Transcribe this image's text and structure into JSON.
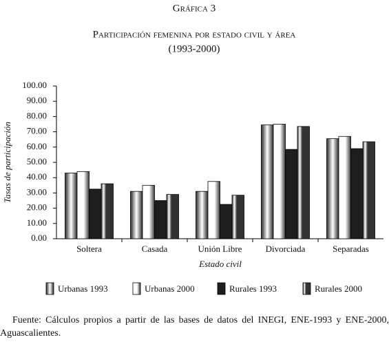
{
  "chart_data": {
    "type": "bar",
    "heading": "Gráfica 3",
    "title": "Participación femenina por estado civil y área",
    "subtitle": "(1993-2000)",
    "ylabel": "Tasas de participación",
    "xlabel": "Estado civil",
    "categories": [
      "Soltera",
      "Casada",
      "Unión Libre",
      "Divorciada",
      "Separadas"
    ],
    "series": [
      {
        "name": "Urbanas 1993",
        "color": "#2a2a2a",
        "values": [
          43,
          31,
          31,
          74.5,
          65.5
        ]
      },
      {
        "name": "Urbanas 2000",
        "color": "#3a3a3a",
        "values": [
          44,
          35,
          37.5,
          75,
          67
        ]
      },
      {
        "name": "Rurales 1993",
        "color": "#1e1e1e",
        "values": [
          32.5,
          25,
          22.5,
          58.5,
          59
        ]
      },
      {
        "name": "Rurales 2000",
        "color": "#333333",
        "values": [
          36,
          29,
          28.5,
          73.5,
          63.5
        ]
      }
    ],
    "ylim": [
      0,
      100
    ],
    "yticks": [
      {
        "value": 0,
        "label": "0.00"
      },
      {
        "value": 10,
        "label": "10.00"
      },
      {
        "value": 20,
        "label": "20.00"
      },
      {
        "value": 30,
        "label": "30.00"
      },
      {
        "value": 40,
        "label": "40.00"
      },
      {
        "value": 50,
        "label": "50.00"
      },
      {
        "value": 60,
        "label": "60.00"
      },
      {
        "value": 70,
        "label": "70.00"
      },
      {
        "value": 80,
        "label": "80.00"
      },
      {
        "value": 90,
        "label": "90.00"
      },
      {
        "value": 100,
        "label": "100.00"
      }
    ],
    "grid": false,
    "legend": "bottom",
    "source": "Fuente: Cálculos propios a partir de las bases de datos del INEGI, ENE-1993 y ENE-2000, Aguascalientes."
  }
}
